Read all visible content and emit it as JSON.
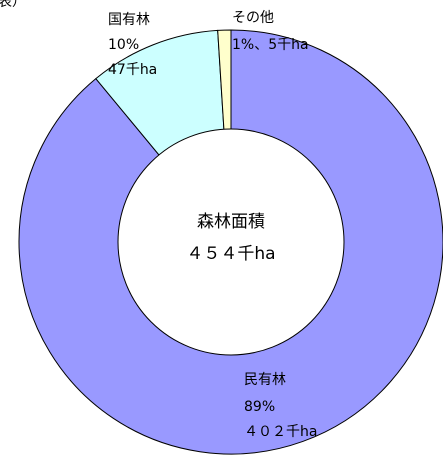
{
  "header_fragment": "表）",
  "chart_data": {
    "type": "donut",
    "categories": [
      "民有林",
      "国有林",
      "その他"
    ],
    "values": [
      89,
      10,
      1
    ],
    "value_labels": [
      "89%",
      "10%",
      "1%、5千ha"
    ],
    "colors": [
      "#9999ff",
      "#ccffff",
      "#ffffcc"
    ],
    "annotations": [
      "４０２千ha",
      "47千ha"
    ],
    "center_title": "森林面積",
    "center_value": "４５４千ha"
  }
}
